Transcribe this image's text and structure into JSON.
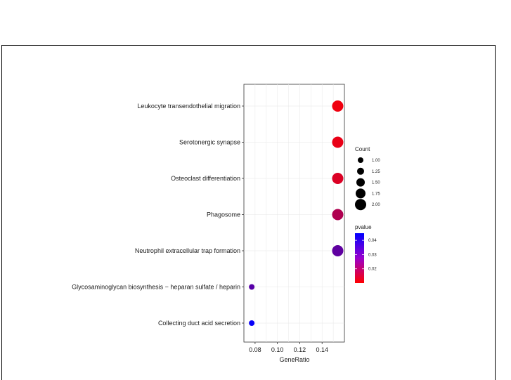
{
  "chart_data": {
    "type": "scatter",
    "xlabel": "GeneRatio",
    "xlim": [
      0.07,
      0.16
    ],
    "xticks": [
      0.08,
      0.1,
      0.12,
      0.14
    ],
    "xtick_labels": [
      "0.08",
      "0.10",
      "0.12",
      "0.14"
    ],
    "categories": [
      "Leukocyte transendothelial migration",
      "Serotonergic synapse",
      "Osteoclast differentiation",
      "Phagosome",
      "Neutrophil extracellular trap formation",
      "Glycosaminoglycan biosynthesis − heparan sulfate / heparin",
      "Collecting duct acid secretion"
    ],
    "points": [
      {
        "term": "Leukocyte transendothelial migration",
        "gene_ratio": 0.154,
        "count": 2,
        "pvalue": 0.012
      },
      {
        "term": "Serotonergic synapse",
        "gene_ratio": 0.154,
        "count": 2,
        "pvalue": 0.013
      },
      {
        "term": "Osteoclast differentiation",
        "gene_ratio": 0.154,
        "count": 2,
        "pvalue": 0.015
      },
      {
        "term": "Phagosome",
        "gene_ratio": 0.154,
        "count": 2,
        "pvalue": 0.021
      },
      {
        "term": "Neutrophil extracellular trap formation",
        "gene_ratio": 0.154,
        "count": 2,
        "pvalue": 0.032
      },
      {
        "term": "Glycosaminoglycan biosynthesis − heparan sulfate / heparin",
        "gene_ratio": 0.077,
        "count": 1,
        "pvalue": 0.033
      },
      {
        "term": "Collecting duct acid secretion",
        "gene_ratio": 0.077,
        "count": 1,
        "pvalue": 0.044
      }
    ],
    "size_legend": {
      "title": "Count",
      "values": [
        1.0,
        1.25,
        1.5,
        1.75,
        2.0
      ],
      "labels": [
        "1.00",
        "1.25",
        "1.50",
        "1.75",
        "2.00"
      ]
    },
    "color_legend": {
      "title": "pvalue",
      "range": [
        0.01,
        0.045
      ],
      "ticks": [
        0.04,
        0.03,
        0.02
      ],
      "tick_labels": [
        "0.04",
        "0.03",
        "0.02"
      ],
      "low_color": "#ff0000",
      "high_color": "#0000ff"
    },
    "grid": true,
    "legend_position": "right"
  }
}
